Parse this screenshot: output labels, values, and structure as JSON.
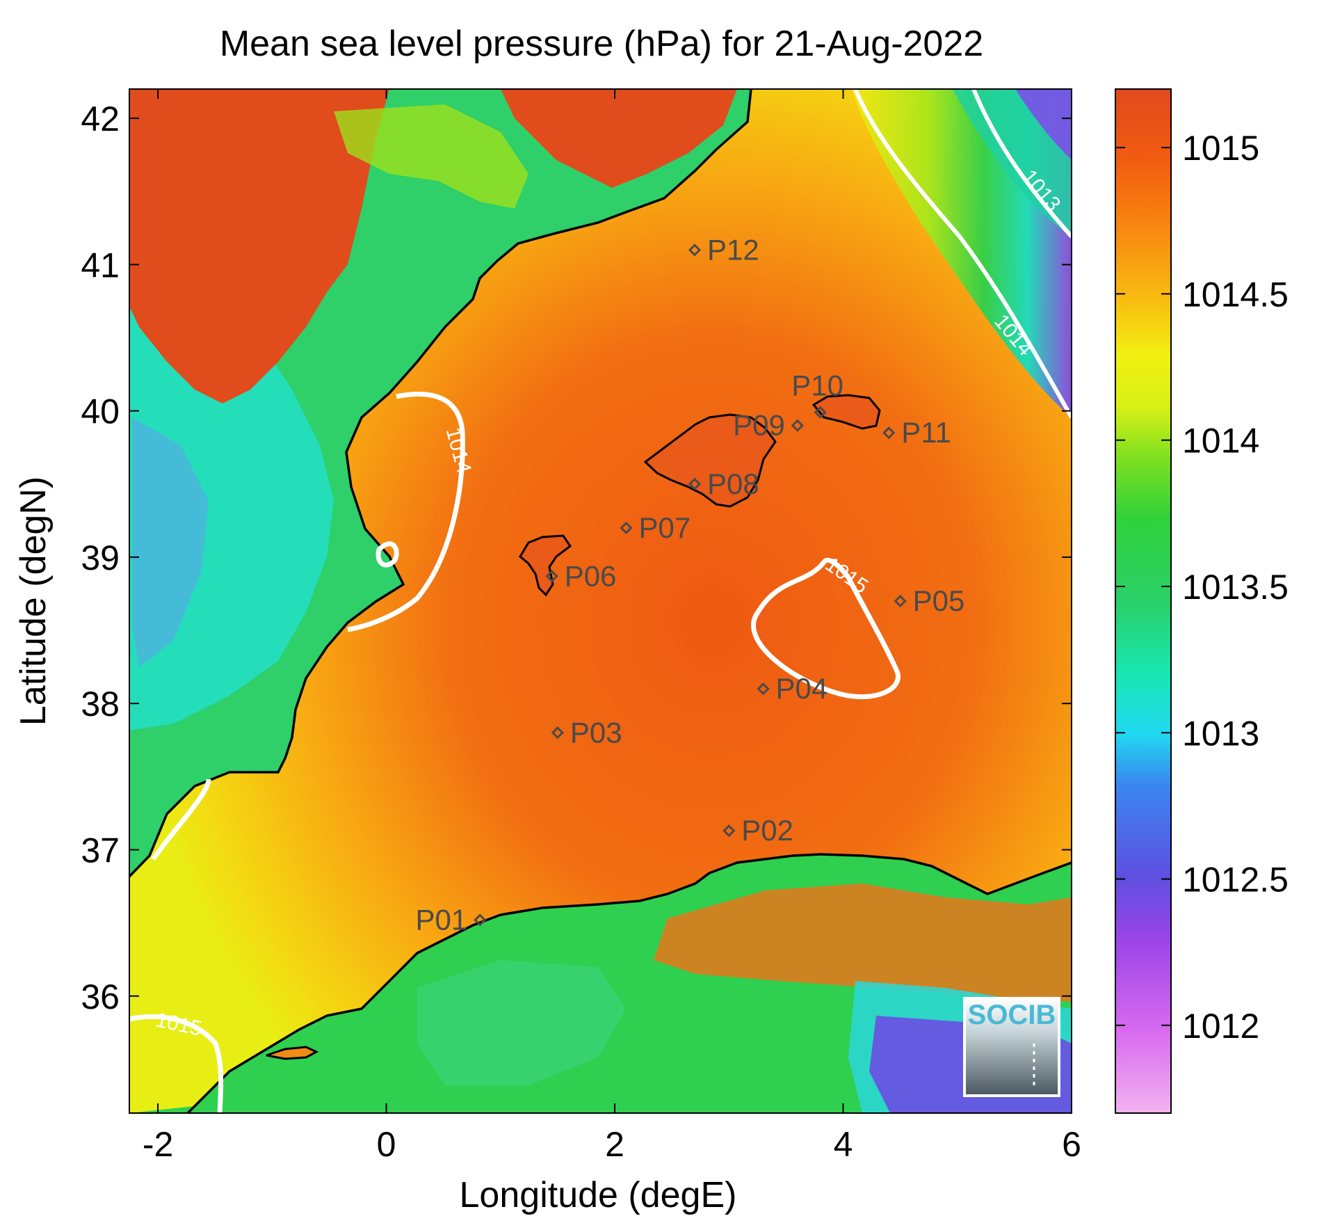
{
  "chart_data": {
    "type": "heatmap",
    "title": "Mean sea level pressure (hPa) for 21-Aug-2022",
    "xlabel": "Longitude (degE)",
    "ylabel": "Latitude (degN)",
    "xlim": [
      -2.25,
      6.0
    ],
    "ylim": [
      35.2,
      42.2
    ],
    "xticks": [
      -2,
      0,
      2,
      4,
      6
    ],
    "yticks": [
      36,
      37,
      38,
      39,
      40,
      41,
      42
    ],
    "colorbar": {
      "range": [
        1011.7,
        1015.2
      ],
      "ticks": [
        1012,
        1012.5,
        1013,
        1013.5,
        1014,
        1014.5,
        1015
      ],
      "tick_labels": [
        "1012",
        "1012.5",
        "1013",
        "1013.5",
        "1014",
        "1014.5",
        "1015"
      ],
      "colors": [
        "#f2b3f0",
        "#d86af0",
        "#9b45e8",
        "#5e4fe0",
        "#3a86f0",
        "#20d8f0",
        "#18e6b0",
        "#2ad068",
        "#2fd13a",
        "#7ee020",
        "#d8f014",
        "#f2f012",
        "#f8c010",
        "#f88a10",
        "#f25c10",
        "#e04a1e"
      ]
    },
    "contours": [
      {
        "level": 1013,
        "label": "1013"
      },
      {
        "level": 1014,
        "label": "1014"
      },
      {
        "level": 1014,
        "label": "1014"
      },
      {
        "level": 1015,
        "label": "1015"
      },
      {
        "level": 1015,
        "label": "1015"
      }
    ],
    "stations": [
      {
        "name": "P01",
        "lon": 0.82,
        "lat": 36.52
      },
      {
        "name": "P02",
        "lon": 3.0,
        "lat": 37.13
      },
      {
        "name": "P03",
        "lon": 1.5,
        "lat": 37.8
      },
      {
        "name": "P04",
        "lon": 3.3,
        "lat": 38.1
      },
      {
        "name": "P05",
        "lon": 4.5,
        "lat": 38.7
      },
      {
        "name": "P06",
        "lon": 1.45,
        "lat": 38.87
      },
      {
        "name": "P07",
        "lon": 2.1,
        "lat": 39.2
      },
      {
        "name": "P08",
        "lon": 2.7,
        "lat": 39.5
      },
      {
        "name": "P09",
        "lon": 3.6,
        "lat": 39.9
      },
      {
        "name": "P10",
        "lon": 3.8,
        "lat": 39.99
      },
      {
        "name": "P11",
        "lon": 4.4,
        "lat": 39.85
      },
      {
        "name": "P12",
        "lon": 2.7,
        "lat": 41.1
      }
    ],
    "logo_text": "SOCIB"
  }
}
